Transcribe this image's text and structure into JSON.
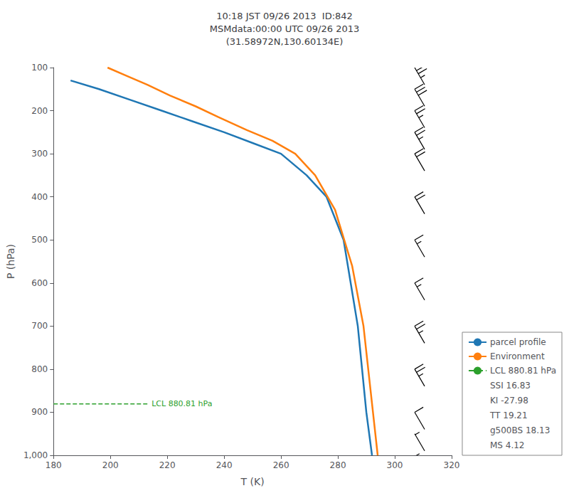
{
  "chart_data": {
    "type": "line",
    "title": "10:18 JST 09/26 2013  ID:842\nMSMdata:00:00 UTC 09/26 2013\n(31.58972N,130.60134E)",
    "xlabel": "T (K)",
    "ylabel": "P (hPa)",
    "xlim": [
      180,
      320
    ],
    "ylim": [
      1000,
      100
    ],
    "xticks": [
      180,
      200,
      220,
      240,
      260,
      280,
      300,
      320
    ],
    "yticks": [
      100,
      200,
      300,
      400,
      500,
      600,
      700,
      800,
      900,
      1000
    ],
    "grid": false,
    "legend": "lower right",
    "series": [
      {
        "name": "parcel profile",
        "color": "#1f77b4",
        "x": [
          186,
          196,
          207,
          218,
          229,
          240,
          250,
          260,
          269,
          276,
          282,
          287,
          290,
          292
        ],
        "values": [
          130,
          150,
          175,
          200,
          225,
          250,
          275,
          300,
          350,
          400,
          500,
          700,
          900,
          1000
        ]
      },
      {
        "name": "Environment",
        "color": "#ff7f0e",
        "x": [
          199,
          206,
          213,
          221,
          230,
          238,
          248,
          257,
          265,
          272,
          279,
          285,
          289,
          292,
          294
        ],
        "values": [
          100,
          120,
          140,
          165,
          190,
          215,
          245,
          270,
          300,
          350,
          430,
          560,
          700,
          880,
          1000
        ]
      },
      {
        "name": "LCL 880.81 hPa",
        "color": "#2ca02c",
        "line_style": "dashed",
        "x": [
          180,
          213
        ],
        "values": [
          880.81,
          880.81
        ],
        "annotation": "LCL 880.81 hPa"
      }
    ],
    "legend_notes": [
      "SSI 16.83",
      "KI -27.98",
      "TT 19.21",
      "g500BS 18.13",
      "MS 4.12"
    ],
    "wind_x": 307,
    "wind_barbs": [
      {
        "p": 100,
        "flags": 0,
        "full": 3,
        "half": 1
      },
      {
        "p": 150,
        "flags": 0,
        "full": 3,
        "half": 0
      },
      {
        "p": 200,
        "flags": 0,
        "full": 2,
        "half": 1
      },
      {
        "p": 250,
        "flags": 0,
        "full": 2,
        "half": 1
      },
      {
        "p": 300,
        "flags": 0,
        "full": 2,
        "half": 0
      },
      {
        "p": 400,
        "flags": 0,
        "full": 2,
        "half": 0
      },
      {
        "p": 500,
        "flags": 0,
        "full": 1,
        "half": 1
      },
      {
        "p": 600,
        "flags": 0,
        "full": 1,
        "half": 1
      },
      {
        "p": 700,
        "flags": 0,
        "full": 2,
        "half": 1
      },
      {
        "p": 800,
        "flags": 0,
        "full": 2,
        "half": 1
      },
      {
        "p": 900,
        "flags": 0,
        "full": 1,
        "half": 0
      },
      {
        "p": 950,
        "flags": 0,
        "full": 0,
        "half": 1
      },
      {
        "p": 1000,
        "flags": 0,
        "full": 0,
        "half": 1
      }
    ]
  }
}
